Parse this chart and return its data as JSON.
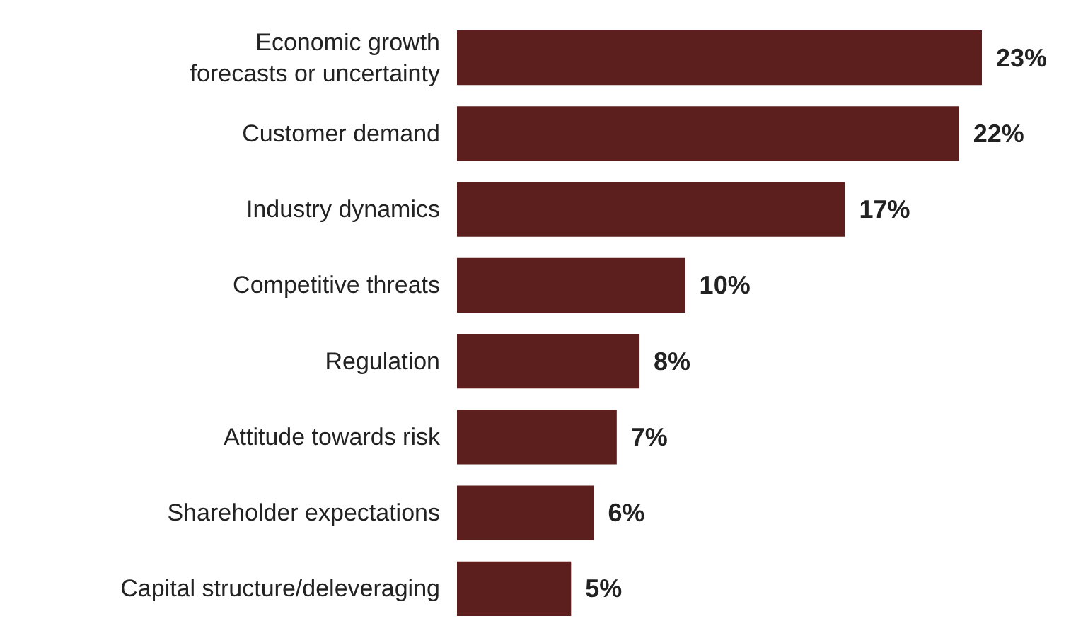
{
  "chart_data": {
    "type": "bar",
    "orientation": "horizontal",
    "categories": [
      "Economic growth\nforecasts or uncertainty",
      "Customer demand",
      "Industry dynamics",
      "Competitive threats",
      "Regulation",
      "Attitude towards risk",
      "Shareholder expectations",
      "Capital structure/deleveraging"
    ],
    "values": [
      23,
      22,
      17,
      10,
      8,
      7,
      6,
      5
    ],
    "value_labels": [
      "23%",
      "22%",
      "17%",
      "10%",
      "8%",
      "7%",
      "6%",
      "5%"
    ],
    "color": "#5c1f1d",
    "tick_labels": "y"
  }
}
